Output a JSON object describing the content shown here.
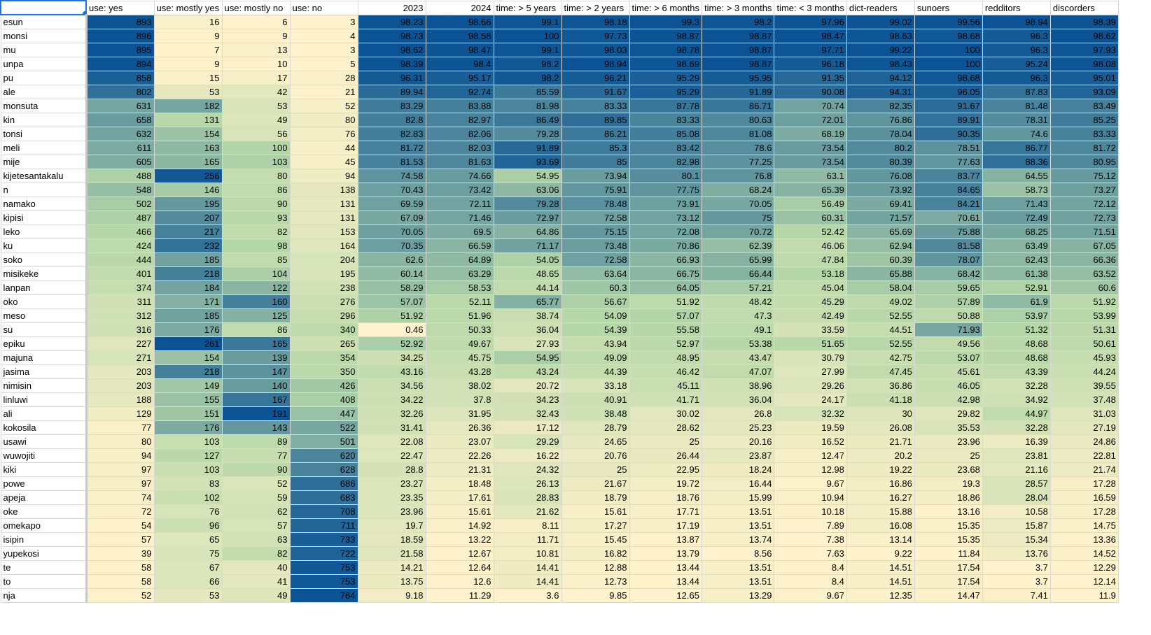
{
  "columns": [
    "",
    "use: yes",
    "use: mostly yes",
    "use: mostly no",
    "use: no",
    "2023",
    "2024",
    "time: > 5 years",
    "time: > 2 years",
    "time: > 6 months",
    "time: > 3 months",
    "time: < 3 months",
    "dict-readers",
    "sunoers",
    "redditors",
    "discorders"
  ],
  "rows": [
    [
      "esun",
      "893",
      "16",
      "6",
      "3",
      "98.23",
      "98.66",
      "99.1",
      "98.18",
      "99.3",
      "98.2",
      "97.96",
      "99.02",
      "99.56",
      "98.94",
      "98.39"
    ],
    [
      "monsi",
      "896",
      "9",
      "9",
      "4",
      "98.73",
      "98.58",
      "100",
      "97.73",
      "98.87",
      "98.87",
      "98.47",
      "98.63",
      "98.68",
      "96.3",
      "98.62"
    ],
    [
      "mu",
      "895",
      "7",
      "13",
      "3",
      "98.62",
      "98.47",
      "99.1",
      "98.03",
      "98.78",
      "98.87",
      "97.71",
      "99.22",
      "100",
      "96.3",
      "97.93"
    ],
    [
      "unpa",
      "894",
      "9",
      "10",
      "5",
      "98.39",
      "98.4",
      "98.2",
      "98.94",
      "98.69",
      "98.87",
      "96.18",
      "98.43",
      "100",
      "95.24",
      "98.08"
    ],
    [
      "pu",
      "858",
      "15",
      "17",
      "28",
      "96.31",
      "95.17",
      "98.2",
      "96.21",
      "95.29",
      "95.95",
      "91.35",
      "94.12",
      "98.68",
      "96.3",
      "95.01"
    ],
    [
      "ale",
      "802",
      "53",
      "42",
      "21",
      "89.94",
      "92.74",
      "85.59",
      "91.67",
      "95.29",
      "91.89",
      "90.08",
      "94.31",
      "96.05",
      "87.83",
      "93.09"
    ],
    [
      "monsuta",
      "631",
      "182",
      "53",
      "52",
      "83.29",
      "83.88",
      "81.98",
      "83.33",
      "87.78",
      "86.71",
      "70.74",
      "82.35",
      "91.67",
      "81.48",
      "83.49"
    ],
    [
      "kin",
      "658",
      "131",
      "49",
      "80",
      "82.8",
      "82.97",
      "86.49",
      "89.85",
      "83.33",
      "80.63",
      "72.01",
      "76.86",
      "89.91",
      "78.31",
      "85.25"
    ],
    [
      "tonsi",
      "632",
      "154",
      "56",
      "76",
      "82.83",
      "82.06",
      "79.28",
      "86.21",
      "85.08",
      "81.08",
      "68.19",
      "78.04",
      "90.35",
      "74.6",
      "83.33"
    ],
    [
      "meli",
      "611",
      "163",
      "100",
      "44",
      "81.72",
      "82.03",
      "91.89",
      "85.3",
      "83.42",
      "78.6",
      "73.54",
      "80.2",
      "78.51",
      "86.77",
      "81.72"
    ],
    [
      "mije",
      "605",
      "165",
      "103",
      "45",
      "81.53",
      "81.63",
      "93.69",
      "85",
      "82.98",
      "77.25",
      "73.54",
      "80.39",
      "77.63",
      "88.36",
      "80.95"
    ],
    [
      "kijetesantakalu",
      "488",
      "256",
      "80",
      "94",
      "74.58",
      "74.66",
      "54.95",
      "73.94",
      "80.1",
      "76.8",
      "63.1",
      "76.08",
      "83.77",
      "64.55",
      "75.12"
    ],
    [
      "n",
      "548",
      "146",
      "86",
      "138",
      "70.43",
      "73.42",
      "63.06",
      "75.91",
      "77.75",
      "68.24",
      "65.39",
      "73.92",
      "84.65",
      "58.73",
      "73.27"
    ],
    [
      "namako",
      "502",
      "195",
      "90",
      "131",
      "69.59",
      "72.11",
      "79.28",
      "78.48",
      "73.91",
      "70.05",
      "56.49",
      "69.41",
      "84.21",
      "71.43",
      "72.12"
    ],
    [
      "kipisi",
      "487",
      "207",
      "93",
      "131",
      "67.09",
      "71.46",
      "72.97",
      "72.58",
      "73.12",
      "75",
      "60.31",
      "71.57",
      "70.61",
      "72.49",
      "72.73"
    ],
    [
      "leko",
      "466",
      "217",
      "82",
      "153",
      "70.05",
      "69.5",
      "64.86",
      "75.15",
      "72.08",
      "70.72",
      "52.42",
      "65.69",
      "75.88",
      "68.25",
      "71.51"
    ],
    [
      "ku",
      "424",
      "232",
      "98",
      "164",
      "70.35",
      "66.59",
      "71.17",
      "73.48",
      "70.86",
      "62.39",
      "46.06",
      "62.94",
      "81.58",
      "63.49",
      "67.05"
    ],
    [
      "soko",
      "444",
      "185",
      "85",
      "204",
      "62.6",
      "64.89",
      "54.05",
      "72.58",
      "66.93",
      "65.99",
      "47.84",
      "60.39",
      "78.07",
      "62.43",
      "66.36"
    ],
    [
      "misikeke",
      "401",
      "218",
      "104",
      "195",
      "60.14",
      "63.29",
      "48.65",
      "63.64",
      "66.75",
      "66.44",
      "53.18",
      "65.88",
      "68.42",
      "61.38",
      "63.52"
    ],
    [
      "lanpan",
      "374",
      "184",
      "122",
      "238",
      "58.29",
      "58.53",
      "44.14",
      "60.3",
      "64.05",
      "57.21",
      "45.04",
      "58.04",
      "59.65",
      "52.91",
      "60.6"
    ],
    [
      "oko",
      "311",
      "171",
      "160",
      "276",
      "57.07",
      "52.11",
      "65.77",
      "56.67",
      "51.92",
      "48.42",
      "45.29",
      "49.02",
      "57.89",
      "61.9",
      "51.92"
    ],
    [
      "meso",
      "312",
      "185",
      "125",
      "296",
      "51.92",
      "51.96",
      "38.74",
      "54.09",
      "57.07",
      "47.3",
      "42.49",
      "52.55",
      "50.88",
      "53.97",
      "53.99"
    ],
    [
      "su",
      "316",
      "176",
      "86",
      "340",
      "0.46",
      "50.33",
      "36.04",
      "54.39",
      "55.58",
      "49.1",
      "33.59",
      "44.51",
      "71.93",
      "51.32",
      "51.31"
    ],
    [
      "epiku",
      "227",
      "261",
      "165",
      "265",
      "52.92",
      "49.67",
      "27.93",
      "43.94",
      "52.97",
      "53.38",
      "51.65",
      "52.55",
      "49.56",
      "48.68",
      "50.61"
    ],
    [
      "majuna",
      "271",
      "154",
      "139",
      "354",
      "34.25",
      "45.75",
      "54.95",
      "49.09",
      "48.95",
      "43.47",
      "30.79",
      "42.75",
      "53.07",
      "48.68",
      "45.93"
    ],
    [
      "jasima",
      "203",
      "218",
      "147",
      "350",
      "43.16",
      "43.28",
      "43.24",
      "44.39",
      "46.42",
      "47.07",
      "27.99",
      "47.45",
      "45.61",
      "43.39",
      "44.24"
    ],
    [
      "nimisin",
      "203",
      "149",
      "140",
      "426",
      "34.56",
      "38.02",
      "20.72",
      "33.18",
      "45.11",
      "38.96",
      "29.26",
      "36.86",
      "46.05",
      "32.28",
      "39.55"
    ],
    [
      "linluwi",
      "188",
      "155",
      "167",
      "408",
      "34.22",
      "37.8",
      "34.23",
      "40.91",
      "41.71",
      "36.04",
      "24.17",
      "41.18",
      "42.98",
      "34.92",
      "37.48"
    ],
    [
      "ali",
      "129",
      "151",
      "191",
      "447",
      "32.26",
      "31.95",
      "32.43",
      "38.48",
      "30.02",
      "26.8",
      "32.32",
      "30",
      "29.82",
      "44.97",
      "31.03"
    ],
    [
      "kokosila",
      "77",
      "176",
      "143",
      "522",
      "31.41",
      "26.36",
      "17.12",
      "28.79",
      "28.62",
      "25.23",
      "19.59",
      "26.08",
      "35.53",
      "32.28",
      "27.19"
    ],
    [
      "usawi",
      "80",
      "103",
      "89",
      "501",
      "22.08",
      "23.07",
      "29.29",
      "24.65",
      "25",
      "20.16",
      "16.52",
      "21.71",
      "23.96",
      "16.39",
      "24.86"
    ],
    [
      "wuwojiti",
      "94",
      "127",
      "77",
      "620",
      "22.47",
      "22.26",
      "16.22",
      "20.76",
      "26.44",
      "23.87",
      "12.47",
      "20.2",
      "25",
      "23.81",
      "22.81"
    ],
    [
      "kiki",
      "97",
      "103",
      "90",
      "628",
      "28.8",
      "21.31",
      "24.32",
      "25",
      "22.95",
      "18.24",
      "12.98",
      "19.22",
      "23.68",
      "21.16",
      "21.74"
    ],
    [
      "powe",
      "97",
      "83",
      "52",
      "686",
      "23.27",
      "18.48",
      "26.13",
      "21.67",
      "19.72",
      "16.44",
      "9.67",
      "16.86",
      "19.3",
      "28.57",
      "17.28"
    ],
    [
      "apeja",
      "74",
      "102",
      "59",
      "683",
      "23.35",
      "17.61",
      "28.83",
      "18.79",
      "18.76",
      "15.99",
      "10.94",
      "16.27",
      "18.86",
      "28.04",
      "16.59"
    ],
    [
      "oke",
      "72",
      "76",
      "62",
      "708",
      "23.96",
      "15.61",
      "21.62",
      "15.61",
      "17.71",
      "13.51",
      "10.18",
      "15.88",
      "13.16",
      "10.58",
      "17.28"
    ],
    [
      "omekapo",
      "54",
      "96",
      "57",
      "711",
      "19.7",
      "14.92",
      "8.11",
      "17.27",
      "17.19",
      "13.51",
      "7.89",
      "16.08",
      "15.35",
      "15.87",
      "14.75"
    ],
    [
      "isipin",
      "57",
      "65",
      "63",
      "733",
      "18.59",
      "13.22",
      "11.71",
      "15.45",
      "13.87",
      "13.74",
      "7.38",
      "13.14",
      "15.35",
      "15.34",
      "13.36"
    ],
    [
      "yupekosi",
      "39",
      "75",
      "82",
      "722",
      "21.58",
      "12.67",
      "10.81",
      "16.82",
      "13.79",
      "8.56",
      "7.63",
      "9.22",
      "11.84",
      "13.76",
      "14.52"
    ],
    [
      "te",
      "58",
      "67",
      "40",
      "753",
      "14.21",
      "12.64",
      "14.41",
      "12.88",
      "13.44",
      "13.51",
      "8.4",
      "14.51",
      "17.54",
      "3.7",
      "12.29"
    ],
    [
      "to",
      "58",
      "66",
      "41",
      "753",
      "13.75",
      "12.6",
      "14.41",
      "12.73",
      "13.44",
      "13.51",
      "8.4",
      "14.51",
      "17.54",
      "3.7",
      "12.14"
    ],
    [
      "nja",
      "52",
      "53",
      "49",
      "764",
      "9.18",
      "11.29",
      "3.6",
      "9.85",
      "12.65",
      "13.29",
      "9.67",
      "12.35",
      "14.47",
      "7.41",
      "11.9"
    ]
  ],
  "scale": {
    "low_color": "#fff2cc",
    "mid_color": "#b6d7a8",
    "high_color": "#0b5394"
  }
}
